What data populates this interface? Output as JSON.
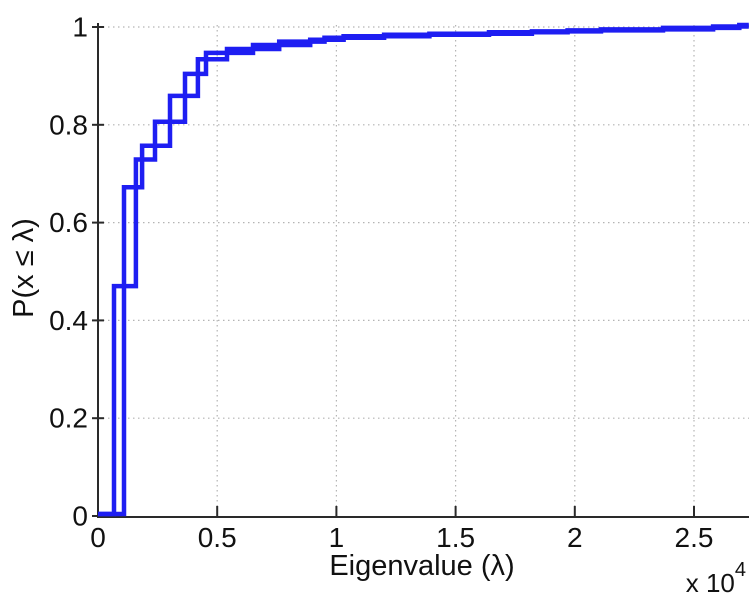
{
  "figure": {
    "xlabel": "Eigenvalue (λ)",
    "ylabel": "P(x ≤ λ)",
    "x_axis_multiplier": "x 10",
    "x_axis_multiplier_exponent": "4"
  },
  "chart_style": {
    "line_color": "#1e1ef2",
    "line_width": 4.5,
    "axis_color": "#2a2a2a",
    "grid_color": "#b4b4b4",
    "background_color": "#ffffff",
    "grid_style": "dotted",
    "legend": "none",
    "title": ""
  },
  "chart_data": {
    "type": "line",
    "subtype": "empirical-cdf-step",
    "title": "",
    "xlabel": "Eigenvalue (λ)",
    "ylabel": "P(x ≤ λ)",
    "x_unit_note": "x values in units of 10^4 (axis shows x 10^4 multiplier)",
    "xlim": [
      0,
      2.73
    ],
    "ylim": [
      0,
      1
    ],
    "grid": "dotted major gridlines both axes",
    "x_ticks": {
      "values": [
        0,
        0.5,
        1,
        1.5,
        2,
        2.5
      ],
      "labels": [
        "0",
        "0.5",
        "1",
        "1.5",
        "2",
        "2.5"
      ]
    },
    "y_ticks": {
      "values": [
        0,
        0.2,
        0.4,
        0.6,
        0.8,
        1
      ],
      "labels": [
        "0",
        "0.2",
        "0.4",
        "0.6",
        "0.8",
        "1"
      ]
    },
    "series": [
      {
        "name": "cdf-curve-1",
        "start": [
          0,
          0
        ],
        "points": [
          [
            0.067,
            0.466
          ],
          [
            0.159,
            0.725
          ],
          [
            0.239,
            0.802
          ],
          [
            0.365,
            0.9
          ],
          [
            0.453,
            0.943
          ],
          [
            0.65,
            0.959
          ],
          [
            0.89,
            0.97
          ],
          [
            1.03,
            0.977
          ],
          [
            1.39,
            0.982
          ],
          [
            1.82,
            0.987
          ],
          [
            2.11,
            0.991
          ],
          [
            2.58,
            0.997
          ]
        ]
      },
      {
        "name": "cdf-curve-2",
        "start": [
          0,
          0
        ],
        "points": [
          [
            0.109,
            0.668
          ],
          [
            0.185,
            0.753
          ],
          [
            0.302,
            0.855
          ],
          [
            0.419,
            0.93
          ],
          [
            0.541,
            0.951
          ],
          [
            0.76,
            0.966
          ],
          [
            0.95,
            0.974
          ],
          [
            1.2,
            0.98
          ],
          [
            1.64,
            0.985
          ],
          [
            1.97,
            0.989
          ],
          [
            2.37,
            0.994
          ],
          [
            2.69,
            1.0
          ]
        ]
      }
    ]
  }
}
